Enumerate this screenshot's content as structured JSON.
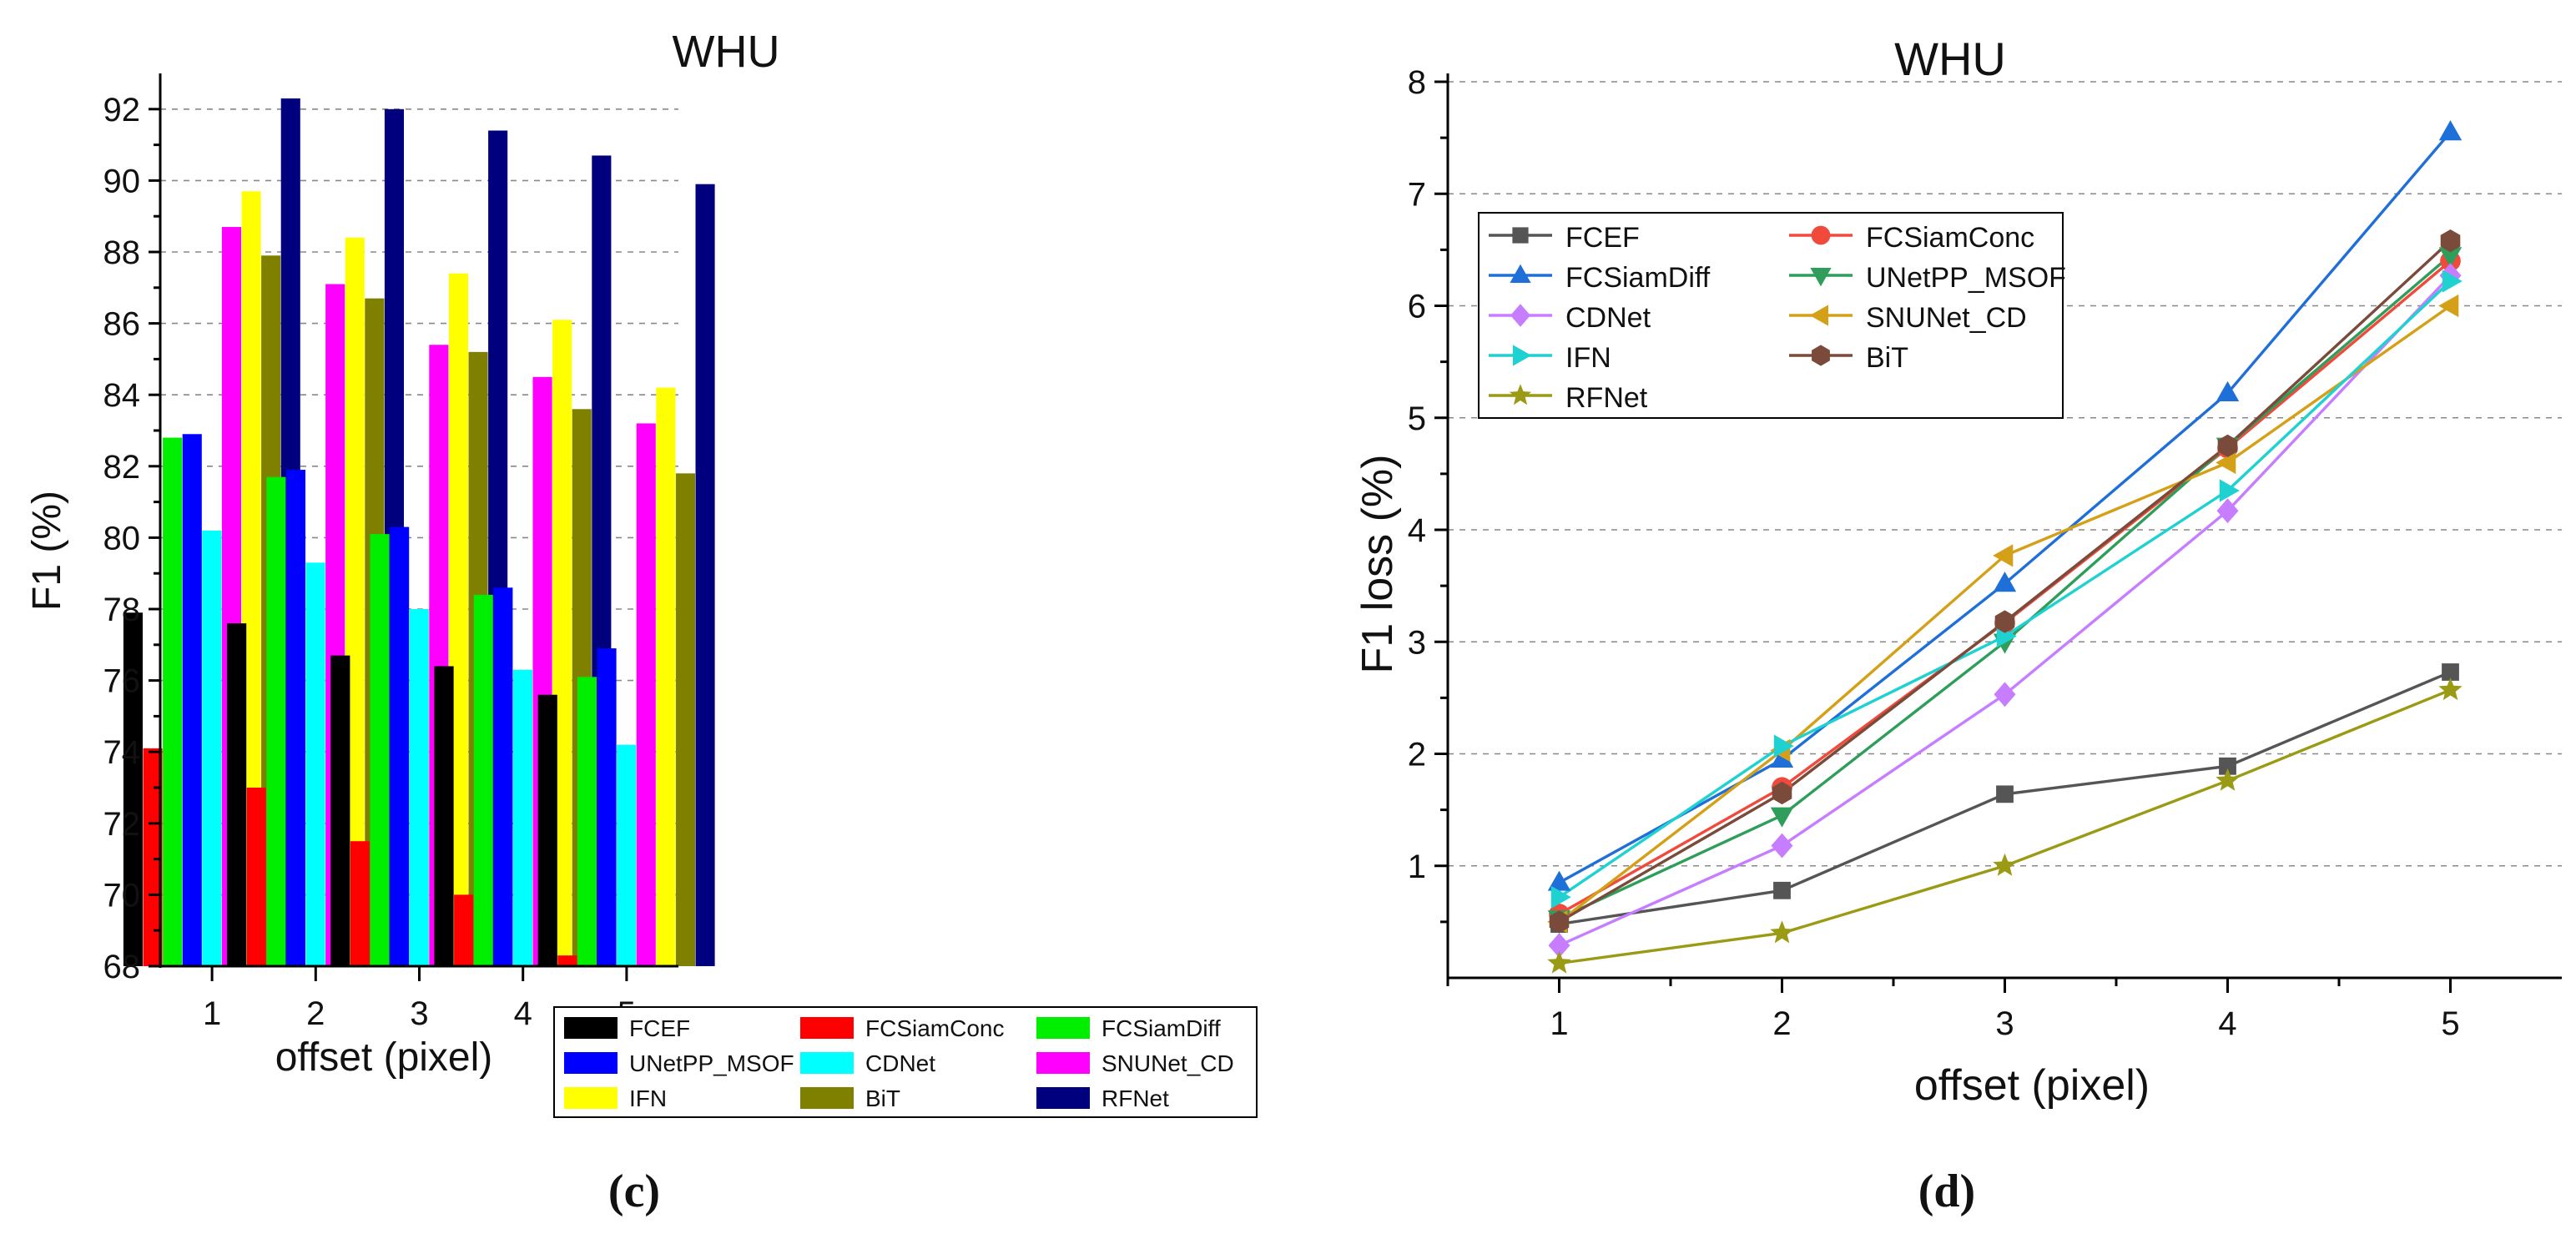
{
  "colors": {
    "FCEF": "#000000",
    "FCSiamConc": "#ff0000",
    "FCSiamDiff": "#00ee00",
    "UNetPP_MSOF": "#0000ff",
    "CDNet": "#00ffff",
    "SNUNet_CD": "#ff00ff",
    "IFN": "#ffff00",
    "BiT": "#808000",
    "RFNet": "#00007f"
  },
  "line_colors": {
    "FCEF": "#555555",
    "FCSiamConc": "#ef4a3c",
    "FCSiamDiff": "#1f6fd8",
    "UNetPP_MSOF": "#2e9e5a",
    "CDNet": "#c77dff",
    "SNUNet_CD": "#d4a017",
    "IFN": "#1fd1d1",
    "BiT": "#7a4a3a",
    "RFNet": "#9a9a14"
  },
  "chart_data": [
    {
      "type": "bar",
      "panel": "c",
      "caption": "(c)",
      "title": "WHU",
      "xlabel": "offset (pixel)",
      "ylabel": "F1 (%)",
      "ylim": [
        68,
        93
      ],
      "yticks": [
        "68",
        "70",
        "72",
        "74",
        "76",
        "78",
        "80",
        "82",
        "84",
        "86",
        "88",
        "90",
        "92"
      ],
      "grid": true,
      "legend_position": "bottom-right",
      "categories": [
        "1",
        "2",
        "3",
        "4",
        "5"
      ],
      "series": [
        {
          "name": "FCEF",
          "values": [
            77.9,
            77.6,
            76.7,
            76.4,
            75.6
          ]
        },
        {
          "name": "FCSiamConc",
          "values": [
            74.1,
            73.0,
            71.5,
            70.0,
            68.3
          ]
        },
        {
          "name": "FCSiamDiff",
          "values": [
            82.8,
            81.7,
            80.1,
            78.4,
            76.1
          ]
        },
        {
          "name": "UNetPP_MSOF",
          "values": [
            82.9,
            81.9,
            80.3,
            78.6,
            76.9
          ]
        },
        {
          "name": "CDNet",
          "values": [
            80.2,
            79.3,
            78.0,
            76.3,
            74.2
          ]
        },
        {
          "name": "SNUNet_CD",
          "values": [
            88.7,
            87.1,
            85.4,
            84.5,
            83.2
          ]
        },
        {
          "name": "IFN",
          "values": [
            89.7,
            88.4,
            87.4,
            86.1,
            84.2
          ]
        },
        {
          "name": "BiT",
          "values": [
            87.9,
            86.7,
            85.2,
            83.6,
            81.8
          ]
        },
        {
          "name": "RFNet",
          "values": [
            92.3,
            92.0,
            91.4,
            90.7,
            89.9
          ]
        }
      ]
    },
    {
      "type": "line",
      "panel": "d",
      "caption": "(d)",
      "title": "WHU",
      "xlabel": "offset (pixel)",
      "ylabel": "F1 loss (%)",
      "xlim": [
        0.5,
        5.5
      ],
      "ylim": [
        0,
        8
      ],
      "x": [
        1,
        2,
        3,
        4,
        5
      ],
      "yticks": [
        "1",
        "2",
        "3",
        "4",
        "5",
        "6",
        "7",
        "8"
      ],
      "xticks": [
        "1",
        "2",
        "3",
        "4",
        "5"
      ],
      "grid": true,
      "legend_position": "top-left",
      "series": [
        {
          "name": "FCEF",
          "marker": "square",
          "values": [
            0.48,
            0.78,
            1.64,
            1.89,
            2.73
          ]
        },
        {
          "name": "FCSiamConc",
          "marker": "circle",
          "values": [
            0.57,
            1.7,
            3.17,
            4.73,
            6.4
          ]
        },
        {
          "name": "FCSiamDiff",
          "marker": "triangle-up",
          "values": [
            0.85,
            1.95,
            3.52,
            5.22,
            7.55
          ]
        },
        {
          "name": "UNetPP_MSOF",
          "marker": "triangle-down",
          "values": [
            0.53,
            1.45,
            3.0,
            4.75,
            6.45
          ]
        },
        {
          "name": "CDNet",
          "marker": "diamond",
          "values": [
            0.29,
            1.18,
            2.53,
            4.17,
            6.27
          ]
        },
        {
          "name": "SNUNet_CD",
          "marker": "triangle-left",
          "values": [
            0.5,
            2.03,
            3.77,
            4.6,
            6.0
          ]
        },
        {
          "name": "IFN",
          "marker": "triangle-right",
          "values": [
            0.72,
            2.07,
            3.05,
            4.35,
            6.22
          ]
        },
        {
          "name": "BiT",
          "marker": "hexagon",
          "values": [
            0.5,
            1.65,
            3.18,
            4.75,
            6.58
          ]
        },
        {
          "name": "RFNet",
          "marker": "star",
          "values": [
            0.13,
            0.4,
            1.0,
            1.76,
            2.57
          ]
        }
      ]
    }
  ]
}
